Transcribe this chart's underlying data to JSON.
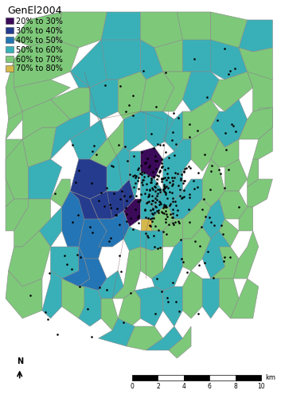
{
  "title": "GenEl2004",
  "legend_entries": [
    {
      "label": "20% to 30%",
      "color": "#3b0a59"
    },
    {
      "label": "30% to 40%",
      "color": "#253b8e"
    },
    {
      "label": "40% to 50%",
      "color": "#2475b5"
    },
    {
      "label": "50% to 60%",
      "color": "#39b0b8"
    },
    {
      "label": "60% to 70%",
      "color": "#7ec87a"
    },
    {
      "label": "70% to 80%",
      "color": "#d4b84a"
    }
  ],
  "edge_color": "#888888",
  "edge_linewidth": 0.4,
  "background_color": "#ffffff",
  "title_fontsize": 9,
  "legend_fontsize": 7
}
